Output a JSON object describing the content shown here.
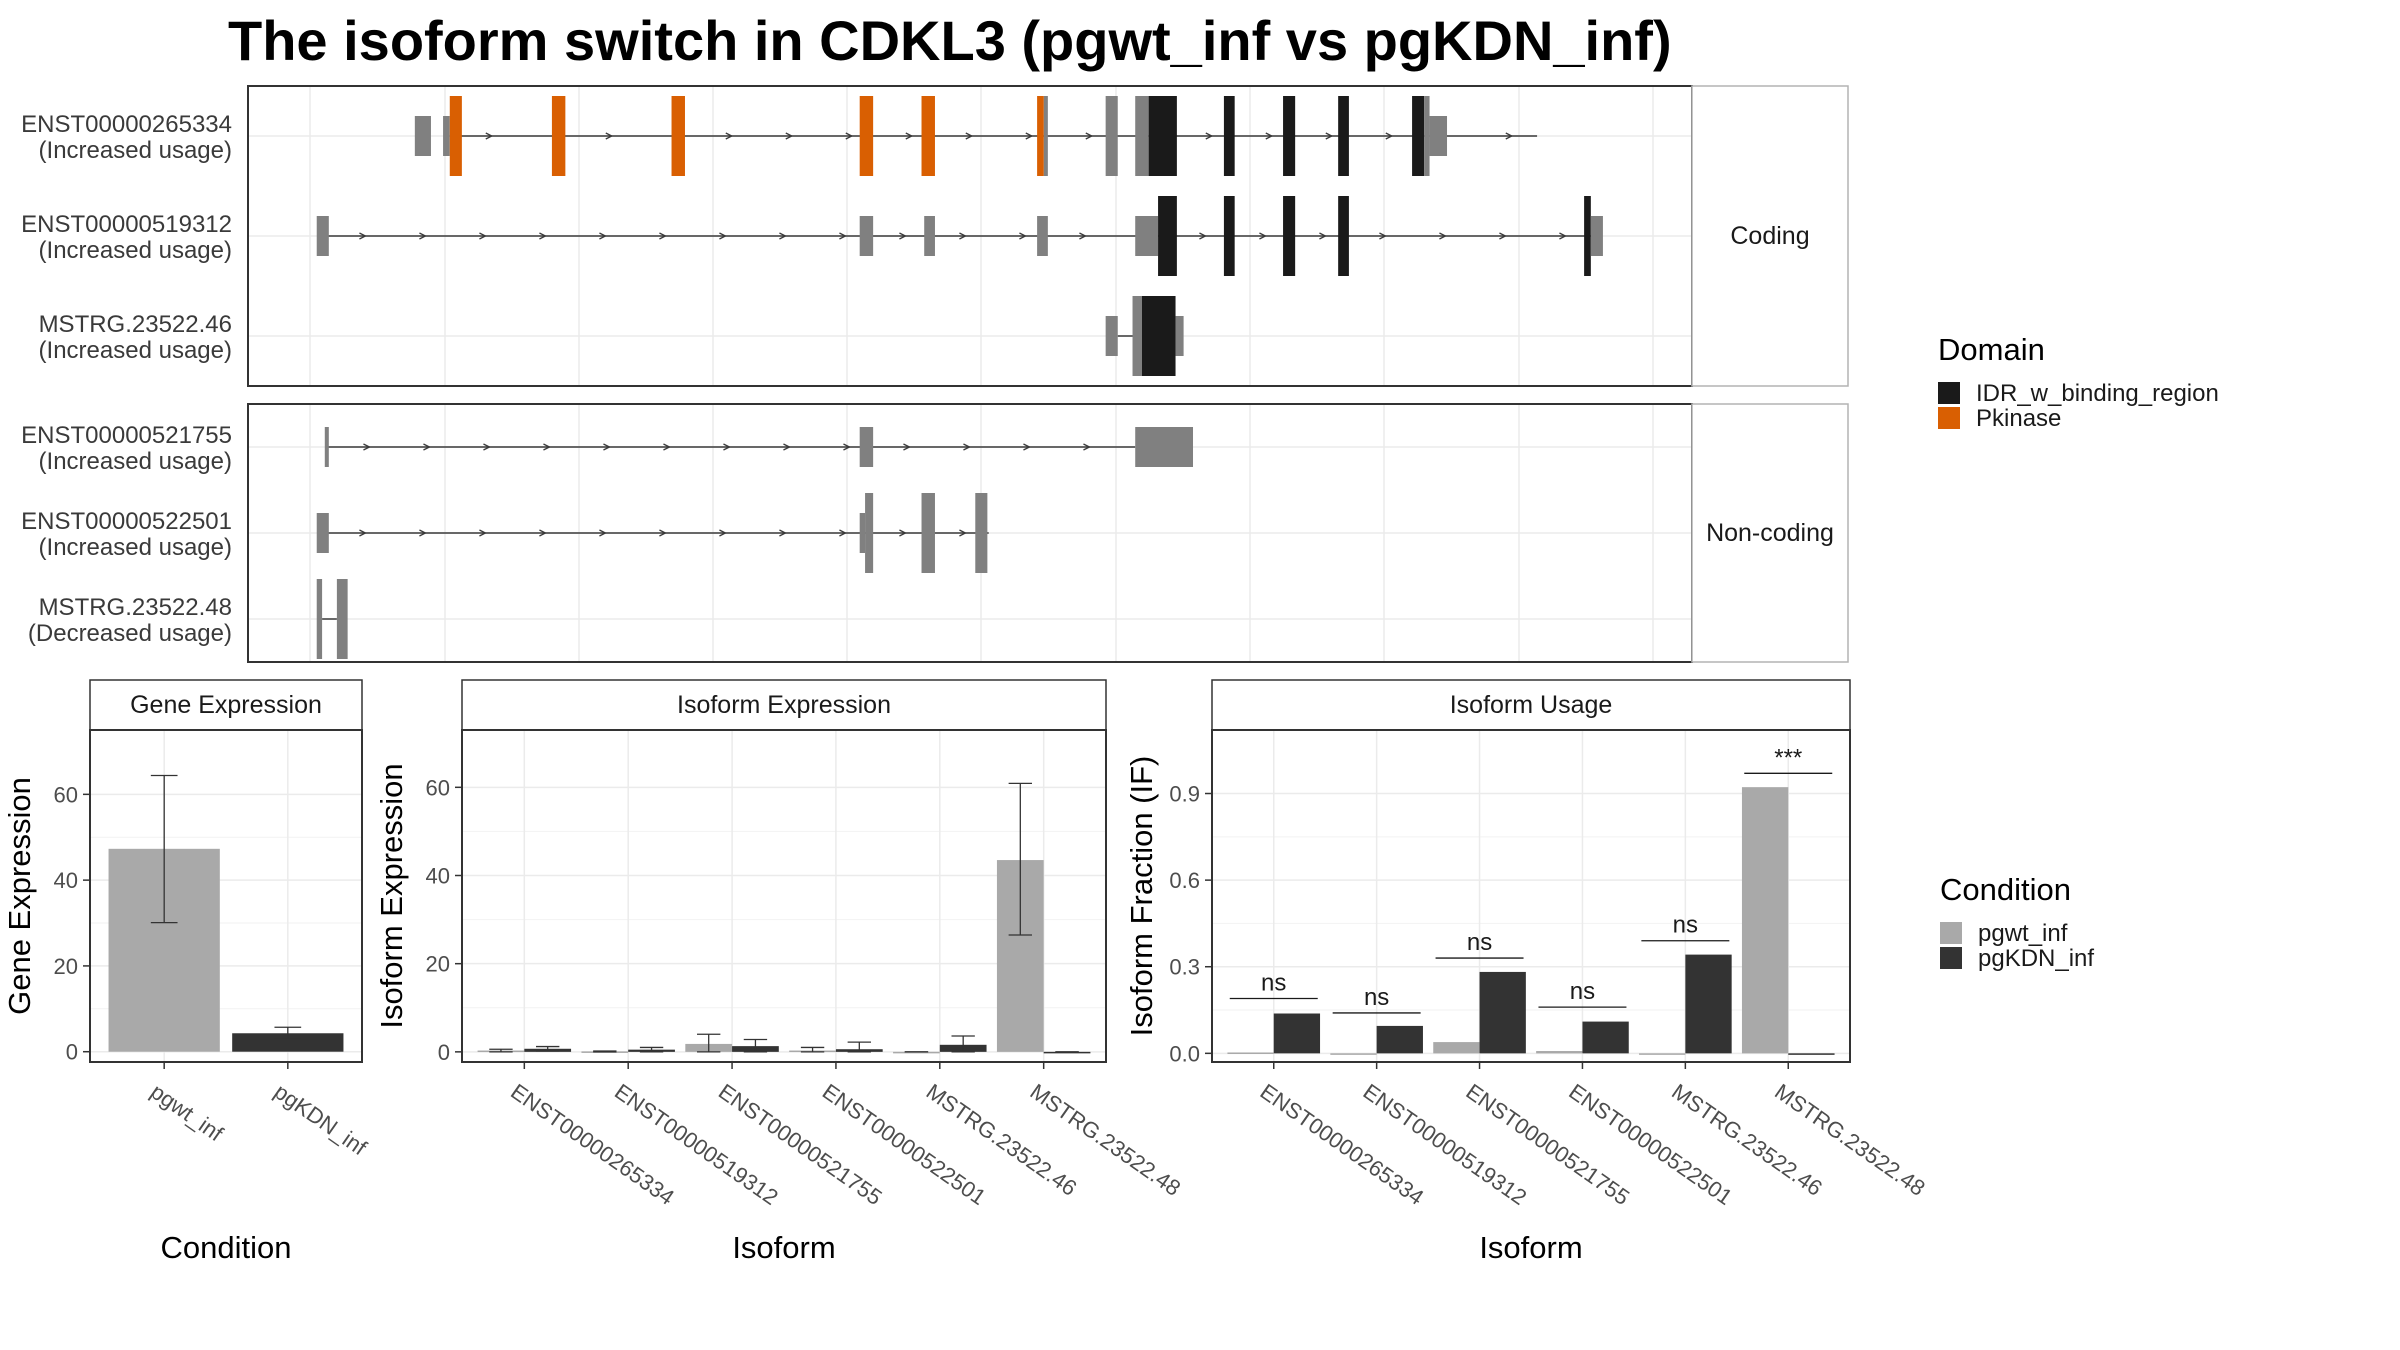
{
  "title": "The isoform switch in CDKL3 (pgwt_inf vs pgKDN_inf)",
  "colors": {
    "IDR_w_binding_region": "#1a1a1a",
    "Pkinase": "#d95f02",
    "utr": "#808080",
    "pgwt_inf": "#a9a9a9",
    "pgKDN_inf": "#333333"
  },
  "structure_panels": [
    {
      "strip": "Coding",
      "isoforms": [
        {
          "id": "ENST00000265334",
          "status": "(Increased usage)",
          "intron": [
            0.104,
            0.913
          ],
          "exons": [
            {
              "s": 0.078,
              "e": 0.09,
              "c": "utr",
              "t": "u"
            },
            {
              "s": 0.099,
              "e": 0.104,
              "c": "utr",
              "t": "u"
            },
            {
              "s": 0.104,
              "e": 0.113,
              "c": "Pkinase",
              "t": "c"
            },
            {
              "s": 0.18,
              "e": 0.19,
              "c": "Pkinase",
              "t": "c"
            },
            {
              "s": 0.269,
              "e": 0.279,
              "c": "Pkinase",
              "t": "c"
            },
            {
              "s": 0.409,
              "e": 0.419,
              "c": "Pkinase",
              "t": "c"
            },
            {
              "s": 0.455,
              "e": 0.465,
              "c": "Pkinase",
              "t": "c"
            },
            {
              "s": 0.541,
              "e": 0.546,
              "c": "Pkinase",
              "t": "c"
            },
            {
              "s": 0.546,
              "e": 0.549,
              "c": "utr",
              "t": "c"
            },
            {
              "s": 0.592,
              "e": 0.601,
              "c": "utr",
              "t": "c"
            },
            {
              "s": 0.614,
              "e": 0.624,
              "c": "utr",
              "t": "c"
            },
            {
              "s": 0.624,
              "e": 0.645,
              "c": "IDR_w_binding_region",
              "t": "c"
            },
            {
              "s": 0.68,
              "e": 0.688,
              "c": "IDR_w_binding_region",
              "t": "c"
            },
            {
              "s": 0.724,
              "e": 0.733,
              "c": "IDR_w_binding_region",
              "t": "c"
            },
            {
              "s": 0.765,
              "e": 0.773,
              "c": "IDR_w_binding_region",
              "t": "c"
            },
            {
              "s": 0.82,
              "e": 0.829,
              "c": "IDR_w_binding_region",
              "t": "c"
            },
            {
              "s": 0.829,
              "e": 0.833,
              "c": "utr",
              "t": "c"
            },
            {
              "s": 0.833,
              "e": 0.846,
              "c": "utr",
              "t": "u"
            }
          ]
        },
        {
          "id": "ENST00000519312",
          "status": "(Increased usage)",
          "intron": [
            0.01,
            0.955
          ],
          "exons": [
            {
              "s": 0.005,
              "e": 0.014,
              "c": "utr",
              "t": "u"
            },
            {
              "s": 0.409,
              "e": 0.419,
              "c": "utr",
              "t": "u"
            },
            {
              "s": 0.457,
              "e": 0.465,
              "c": "utr",
              "t": "u"
            },
            {
              "s": 0.541,
              "e": 0.549,
              "c": "utr",
              "t": "u"
            },
            {
              "s": 0.614,
              "e": 0.631,
              "c": "utr",
              "t": "u"
            },
            {
              "s": 0.631,
              "e": 0.645,
              "c": "IDR_w_binding_region",
              "t": "c"
            },
            {
              "s": 0.68,
              "e": 0.688,
              "c": "IDR_w_binding_region",
              "t": "c"
            },
            {
              "s": 0.724,
              "e": 0.733,
              "c": "IDR_w_binding_region",
              "t": "c"
            },
            {
              "s": 0.765,
              "e": 0.773,
              "c": "IDR_w_binding_region",
              "t": "c"
            },
            {
              "s": 0.948,
              "e": 0.953,
              "c": "IDR_w_binding_region",
              "t": "c"
            },
            {
              "s": 0.953,
              "e": 0.962,
              "c": "utr",
              "t": "u"
            }
          ]
        },
        {
          "id": "MSTRG.23522.46",
          "status": "(Increased usage)",
          "intron": [
            0.601,
            0.617
          ],
          "exons": [
            {
              "s": 0.592,
              "e": 0.601,
              "c": "utr",
              "t": "u"
            },
            {
              "s": 0.612,
              "e": 0.619,
              "c": "utr",
              "t": "c"
            },
            {
              "s": 0.619,
              "e": 0.644,
              "c": "IDR_w_binding_region",
              "t": "c"
            },
            {
              "s": 0.644,
              "e": 0.65,
              "c": "utr",
              "t": "u"
            }
          ]
        }
      ]
    },
    {
      "strip": "Non-coding",
      "isoforms": [
        {
          "id": "ENST00000521755",
          "status": "(Increased usage)",
          "intron": [
            0.013,
            0.614
          ],
          "exons": [
            {
              "s": 0.011,
              "e": 0.014,
              "c": "utr",
              "t": "u"
            },
            {
              "s": 0.409,
              "e": 0.419,
              "c": "utr",
              "t": "u"
            },
            {
              "s": 0.614,
              "e": 0.657,
              "c": "utr",
              "t": "u"
            }
          ]
        },
        {
          "id": "ENST00000522501",
          "status": "(Increased usage)",
          "intron": [
            0.01,
            0.505
          ],
          "exons": [
            {
              "s": 0.005,
              "e": 0.014,
              "c": "utr",
              "t": "u"
            },
            {
              "s": 0.409,
              "e": 0.413,
              "c": "utr",
              "t": "u"
            },
            {
              "s": 0.413,
              "e": 0.419,
              "c": "utr",
              "t": "c"
            },
            {
              "s": 0.455,
              "e": 0.465,
              "c": "utr",
              "t": "c"
            },
            {
              "s": 0.495,
              "e": 0.504,
              "c": "utr",
              "t": "c"
            }
          ]
        },
        {
          "id": "MSTRG.23522.48",
          "status": "(Decreased usage)",
          "intron": [
            0.009,
            0.02
          ],
          "exons": [
            {
              "s": 0.005,
              "e": 0.009,
              "c": "utr",
              "t": "c"
            },
            {
              "s": 0.02,
              "e": 0.028,
              "c": "utr",
              "t": "c"
            }
          ]
        }
      ]
    }
  ],
  "domain_legend": {
    "title": "Domain",
    "items": [
      {
        "label": "IDR_w_binding_region",
        "color": "IDR_w_binding_region"
      },
      {
        "label": "Pkinase",
        "color": "Pkinase"
      }
    ]
  },
  "condition_legend": {
    "title": "Condition",
    "items": [
      {
        "label": "pgwt_inf",
        "color": "pgwt_inf"
      },
      {
        "label": "pgKDN_inf",
        "color": "pgKDN_inf"
      }
    ]
  },
  "chart_data": [
    {
      "type": "bar",
      "title": "Gene Expression",
      "xlabel": "Condition",
      "ylabel": "Gene Expression",
      "categories": [
        "pgwt_inf",
        "pgKDN_inf"
      ],
      "values": [
        47.3,
        4.3
      ],
      "error_low": [
        30.1,
        3.0
      ],
      "error_high": [
        64.4,
        5.7
      ],
      "yticks": [
        0,
        20,
        40,
        60
      ],
      "ylim": [
        -2.4,
        75
      ]
    },
    {
      "type": "bar",
      "title": "Isoform Expression",
      "xlabel": "Isoform",
      "ylabel": "Isoform Expression",
      "categories": [
        "ENST00000265334",
        "ENST00000519312",
        "ENST00000521755",
        "ENST00000522501",
        "MSTRG.23522.46",
        "MSTRG.23522.48"
      ],
      "series": [
        {
          "name": "pgwt_inf",
          "values": [
            0.3,
            0.1,
            1.8,
            0.3,
            0.0,
            43.5
          ],
          "error_low": [
            0.0,
            0.0,
            0.0,
            0.0,
            0.0,
            26.5
          ],
          "error_high": [
            0.6,
            0.2,
            4.0,
            1.0,
            0.0,
            60.9
          ]
        },
        {
          "name": "pgKDN_inf",
          "values": [
            0.7,
            0.5,
            1.3,
            0.6,
            1.6,
            0.0
          ],
          "error_low": [
            0.2,
            0.0,
            0.0,
            0.0,
            0.0,
            0.0
          ],
          "error_high": [
            1.2,
            1.0,
            2.8,
            2.2,
            3.6,
            0.0
          ]
        }
      ],
      "yticks": [
        0,
        20,
        40,
        60
      ],
      "ylim": [
        -2.3,
        73
      ]
    },
    {
      "type": "bar",
      "title": "Isoform Usage",
      "xlabel": "Isoform",
      "ylabel": "Isoform Fraction (IF)",
      "categories": [
        "ENST00000265334",
        "ENST00000519312",
        "ENST00000521755",
        "ENST00000522501",
        "MSTRG.23522.46",
        "MSTRG.23522.48"
      ],
      "series": [
        {
          "name": "pgwt_inf",
          "values": [
            0.003,
            0.0,
            0.039,
            0.008,
            0.0,
            0.922
          ]
        },
        {
          "name": "pgKDN_inf",
          "values": [
            0.138,
            0.095,
            0.282,
            0.11,
            0.342,
            0.0
          ]
        }
      ],
      "significance": [
        "ns",
        "ns",
        "ns",
        "ns",
        "ns",
        "***"
      ],
      "sig_y": [
        0.19,
        0.14,
        0.33,
        0.16,
        0.39,
        0.97
      ],
      "yticks": [
        0.0,
        0.3,
        0.6,
        0.9
      ],
      "ytick_labels": [
        "0.0",
        "0.3",
        "0.6",
        "0.9"
      ],
      "ylim": [
        -0.03,
        1.12
      ]
    }
  ]
}
